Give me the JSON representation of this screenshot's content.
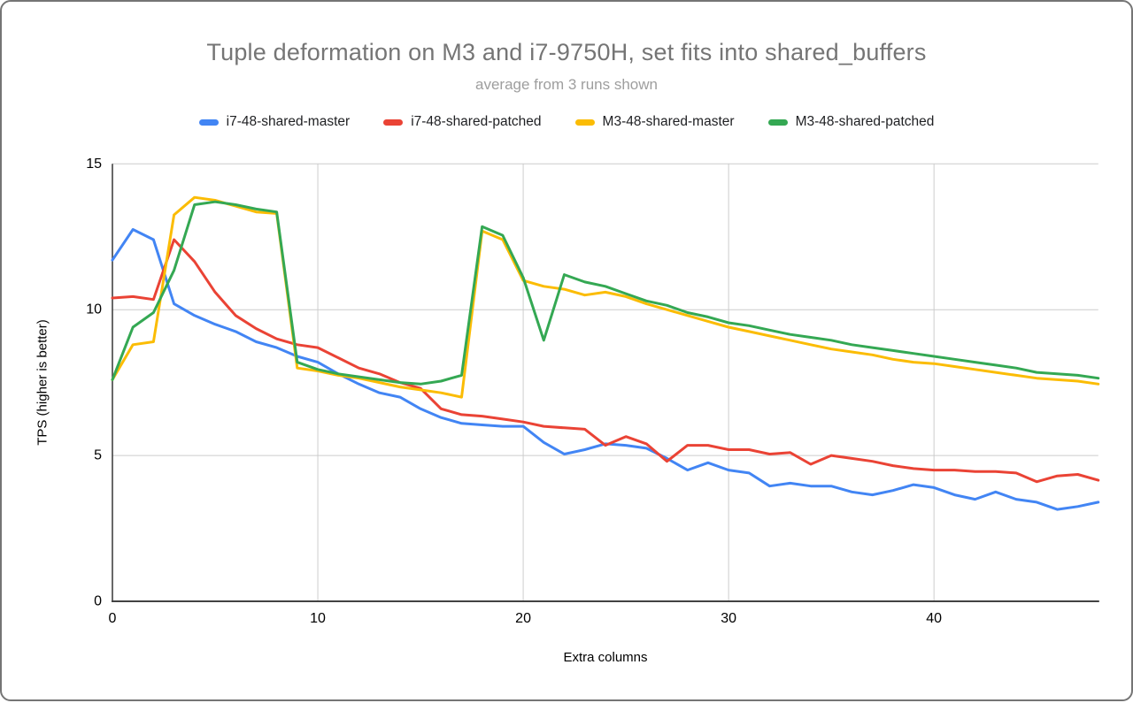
{
  "chart_data": {
    "type": "line",
    "title": "Tuple deformation on M3 and i7-9750H, set fits into shared_buffers",
    "subtitle": "average from 3 runs shown",
    "xlabel": "Extra columns",
    "ylabel": "TPS (higher is better)",
    "xlim": [
      0,
      48
    ],
    "ylim": [
      0,
      15
    ],
    "x_ticks": [
      0,
      10,
      20,
      30,
      40
    ],
    "y_ticks": [
      0,
      5,
      10,
      15
    ],
    "grid": true,
    "legend_position": "top",
    "x": [
      0,
      1,
      2,
      3,
      4,
      5,
      6,
      7,
      8,
      9,
      10,
      11,
      12,
      13,
      14,
      15,
      16,
      17,
      18,
      19,
      20,
      21,
      22,
      23,
      24,
      25,
      26,
      27,
      28,
      29,
      30,
      31,
      32,
      33,
      34,
      35,
      36,
      37,
      38,
      39,
      40,
      41,
      42,
      43,
      44,
      45,
      46,
      47,
      48
    ],
    "series": [
      {
        "name": "i7-48-shared-master",
        "color": "#4285F4",
        "values": [
          11.7,
          12.75,
          12.4,
          10.2,
          9.8,
          9.5,
          9.25,
          8.9,
          8.7,
          8.4,
          8.2,
          7.8,
          7.45,
          7.15,
          7.0,
          6.6,
          6.3,
          6.1,
          6.05,
          6.0,
          6.0,
          5.45,
          5.05,
          5.2,
          5.4,
          5.35,
          5.25,
          4.9,
          4.5,
          4.75,
          4.5,
          4.4,
          3.95,
          4.05,
          3.95,
          3.95,
          3.75,
          3.65,
          3.8,
          4.0,
          3.9,
          3.65,
          3.5,
          3.75,
          3.5,
          3.4,
          3.15,
          3.25,
          3.4
        ]
      },
      {
        "name": "i7-48-shared-patched",
        "color": "#EA4335",
        "values": [
          10.4,
          10.45,
          10.35,
          12.4,
          11.65,
          10.6,
          9.8,
          9.35,
          9.0,
          8.8,
          8.7,
          8.35,
          8.0,
          7.8,
          7.5,
          7.3,
          6.6,
          6.4,
          6.35,
          6.25,
          6.15,
          6.0,
          5.95,
          5.9,
          5.35,
          5.65,
          5.4,
          4.8,
          5.35,
          5.35,
          5.2,
          5.2,
          5.05,
          5.1,
          4.7,
          5.0,
          4.9,
          4.8,
          4.65,
          4.55,
          4.5,
          4.5,
          4.45,
          4.45,
          4.4,
          4.1,
          4.3,
          4.35,
          4.15
        ]
      },
      {
        "name": "M3-48-shared-master",
        "color": "#FBBC04",
        "values": [
          7.6,
          8.8,
          8.9,
          13.25,
          13.85,
          13.75,
          13.55,
          13.35,
          13.3,
          8.0,
          7.9,
          7.75,
          7.65,
          7.5,
          7.35,
          7.25,
          7.15,
          7.0,
          12.7,
          12.4,
          11.0,
          10.8,
          10.7,
          10.5,
          10.6,
          10.45,
          10.2,
          10.0,
          9.8,
          9.6,
          9.4,
          9.25,
          9.1,
          8.95,
          8.8,
          8.65,
          8.55,
          8.45,
          8.3,
          8.2,
          8.15,
          8.05,
          7.95,
          7.85,
          7.75,
          7.65,
          7.6,
          7.55,
          7.45
        ]
      },
      {
        "name": "M3-48-shared-patched",
        "color": "#34A853",
        "values": [
          7.6,
          9.4,
          9.9,
          11.35,
          13.6,
          13.7,
          13.6,
          13.45,
          13.35,
          8.2,
          7.95,
          7.8,
          7.7,
          7.6,
          7.5,
          7.45,
          7.55,
          7.75,
          12.85,
          12.55,
          11.1,
          8.95,
          11.2,
          10.95,
          10.8,
          10.55,
          10.3,
          10.15,
          9.9,
          9.75,
          9.55,
          9.45,
          9.3,
          9.15,
          9.05,
          8.95,
          8.8,
          8.7,
          8.6,
          8.5,
          8.4,
          8.3,
          8.2,
          8.1,
          8.0,
          7.85,
          7.8,
          7.75,
          7.65
        ]
      }
    ]
  },
  "colors": {
    "grid": "#cccccc",
    "axis": "#424242",
    "title": "#757575",
    "subtitle": "#9e9e9e",
    "legend_text": "#202124",
    "tick_text": "#000000"
  }
}
